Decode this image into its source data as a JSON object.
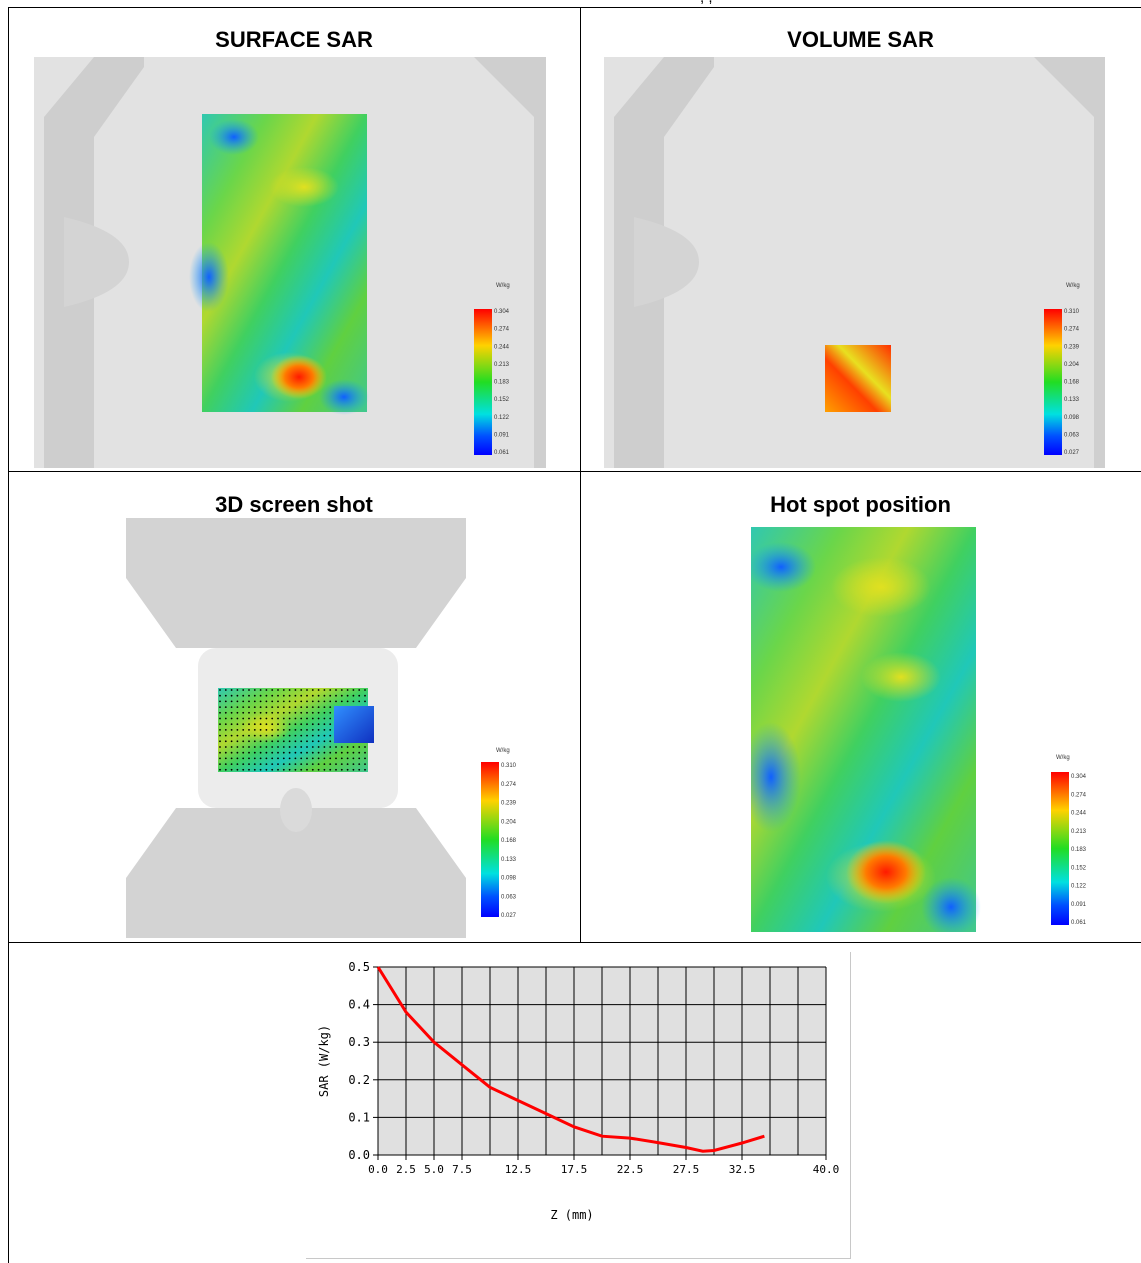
{
  "caption_fragment": ", , ",
  "panels": {
    "surface_sar": {
      "title": "SURFACE SAR",
      "legend_unit": "W/kg",
      "legend_ticks": [
        "0.304",
        "0.274",
        "0.244",
        "0.213",
        "0.183",
        "0.152",
        "0.122",
        "0.091",
        "0.061"
      ]
    },
    "volume_sar": {
      "title": "VOLUME SAR",
      "legend_unit": "W/kg",
      "legend_ticks": [
        "0.310",
        "0.274",
        "0.239",
        "0.204",
        "0.168",
        "0.133",
        "0.098",
        "0.063",
        "0.027"
      ]
    },
    "screenshot_3d": {
      "title": "3D screen shot",
      "legend_unit": "W/kg",
      "legend_ticks": [
        "0.310",
        "0.274",
        "0.239",
        "0.204",
        "0.168",
        "0.133",
        "0.098",
        "0.063",
        "0.027"
      ]
    },
    "hot_spot": {
      "title": "Hot spot position",
      "legend_unit": "W/kg",
      "legend_ticks": [
        "0.304",
        "0.274",
        "0.244",
        "0.213",
        "0.183",
        "0.152",
        "0.122",
        "0.091",
        "0.061"
      ]
    }
  },
  "colors": {
    "line": "#ff0000",
    "plot_bg": "#e0e0e0",
    "phantom": "#d9d9d9"
  },
  "chart_data": {
    "type": "line",
    "xlabel": "Z (mm)",
    "ylabel": "SAR (W/kg)",
    "xlim": [
      0,
      40
    ],
    "ylim": [
      0,
      0.5
    ],
    "x_ticks": [
      "0.0",
      "2.5",
      "5.0",
      "7.5",
      "12.5",
      "17.5",
      "22.5",
      "27.5",
      "32.5",
      "40.0"
    ],
    "x_tick_values": [
      0,
      2.5,
      5,
      7.5,
      12.5,
      17.5,
      22.5,
      27.5,
      32.5,
      40
    ],
    "y_ticks": [
      "0.0",
      "0.1",
      "0.2",
      "0.3",
      "0.4",
      "0.5"
    ],
    "y_tick_values": [
      0,
      0.1,
      0.2,
      0.3,
      0.4,
      0.5
    ],
    "grid": true,
    "series": [
      {
        "x": [
          0,
          2.5,
          5,
          7.5,
          10,
          12.5,
          15,
          17.5,
          20,
          22.5,
          25,
          27.5,
          29,
          30,
          32.5,
          34.5
        ],
        "y": [
          0.5,
          0.38,
          0.3,
          0.24,
          0.18,
          0.145,
          0.11,
          0.075,
          0.05,
          0.045,
          0.033,
          0.02,
          0.01,
          0.012,
          0.032,
          0.05
        ]
      }
    ]
  }
}
